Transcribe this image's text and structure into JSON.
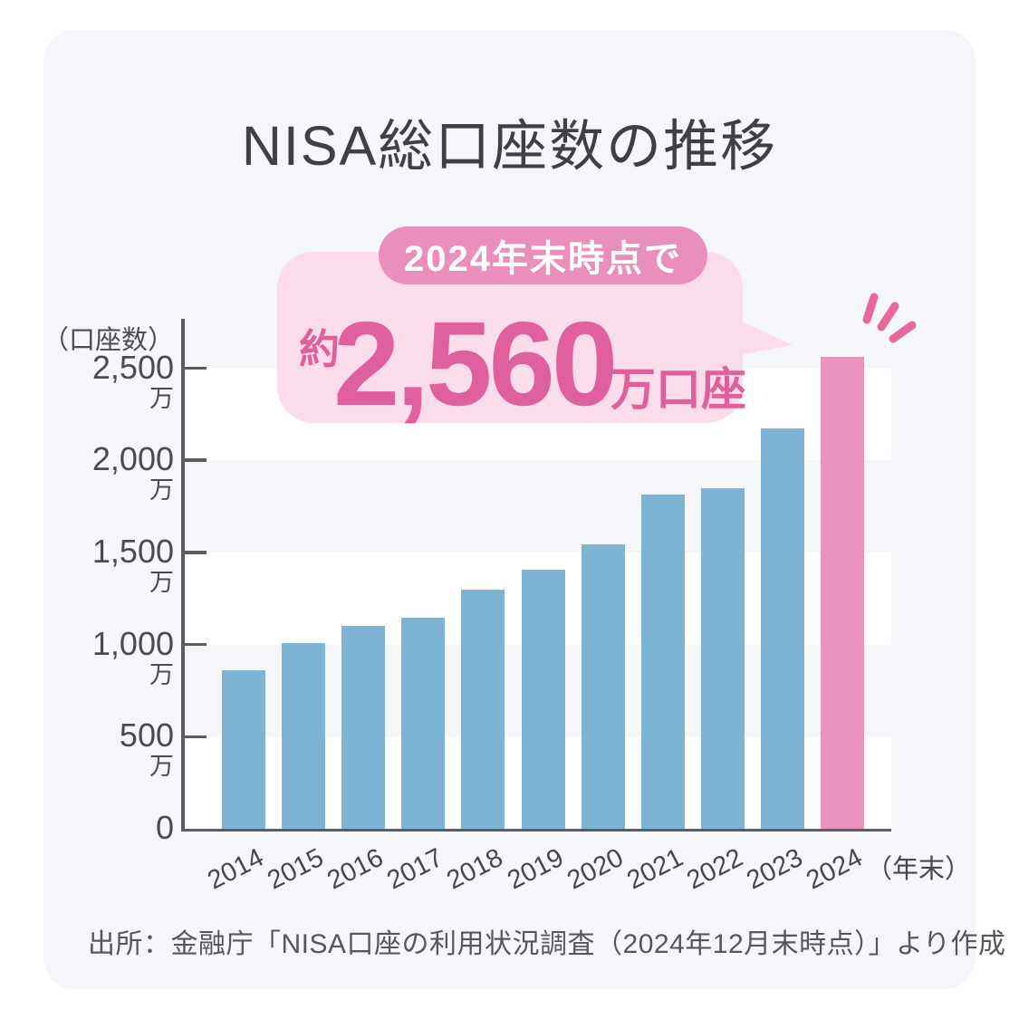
{
  "page": {
    "outer_background": "#ffffff",
    "card_background": "#f5f6f9"
  },
  "title": "NISA総口座数の推移",
  "callout": {
    "badge_label": "2024年末時点で",
    "approx_prefix": "約",
    "value_text": "2,560",
    "unit_text": "万口座",
    "bubble_color": "#fbdcea",
    "badge_color": "#ea8fbc",
    "text_color": "#e0609d"
  },
  "sparkle": {
    "color": "#e7679f"
  },
  "chart_data": {
    "type": "bar",
    "title": "NISA総口座数の推移",
    "y_axis_unit": "（口座数）",
    "x_axis_unit": "（年末）",
    "categories": [
      "2014",
      "2015",
      "2016",
      "2017",
      "2018",
      "2019",
      "2020",
      "2021",
      "2022",
      "2023",
      "2024"
    ],
    "values": [
      860,
      1010,
      1100,
      1145,
      1300,
      1405,
      1545,
      1815,
      1850,
      2175,
      2560
    ],
    "value_unit": "万",
    "highlight_index": 10,
    "highlight_value_label": "約2,560万口座",
    "y_ticks": [
      {
        "value": 2500,
        "label": "2,500",
        "unit": "万"
      },
      {
        "value": 2000,
        "label": "2,000",
        "unit": "万"
      },
      {
        "value": 1500,
        "label": "1,500",
        "unit": "万"
      },
      {
        "value": 1000,
        "label": "1,000",
        "unit": "万"
      },
      {
        "value": 500,
        "label": "500",
        "unit": "万"
      },
      {
        "value": 0,
        "label": "0",
        "unit": ""
      }
    ],
    "ylim": [
      0,
      2770
    ],
    "stripe_bands": [
      [
        2500,
        2000
      ],
      [
        1500,
        1000
      ],
      [
        500,
        0
      ]
    ],
    "bar_color": "#7db4d3",
    "highlight_color": "#ec93bd",
    "stripe_color": "#ffffff",
    "axis_color": "#5b5d61",
    "legend": "none",
    "grid": "white horizontal bands between alternating ticks"
  },
  "source": "出所：金融庁「NISA口座の利用状況調査（2024年12月末時点）」より作成"
}
